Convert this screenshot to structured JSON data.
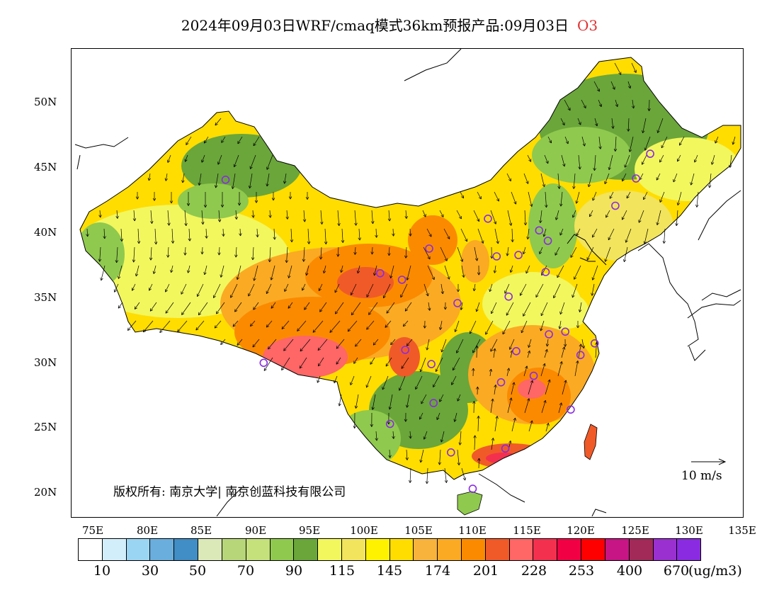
{
  "title": {
    "main": "2024年09月03日WRF/cmaq模式36km预报产品:09月03日",
    "species": "O3"
  },
  "lat_labels": [
    "50N",
    "45N",
    "40N",
    "35N",
    "30N",
    "25N",
    "20N"
  ],
  "lon_labels": [
    "75E",
    "80E",
    "85E",
    "90E",
    "95E",
    "100E",
    "105E",
    "110E",
    "115E",
    "120E",
    "125E",
    "130E",
    "135E"
  ],
  "colorbar": {
    "colors": [
      "#ffffff",
      "#d3eefb",
      "#9ad6f3",
      "#6aaede",
      "#418dc5",
      "#dbe9b9",
      "#b7d679",
      "#c4e17b",
      "#8fc94e",
      "#6aa63a",
      "#f2f75e",
      "#f2e45c",
      "#fff200",
      "#ffdd00",
      "#f8b33d",
      "#fbaa23",
      "#fb8a00",
      "#f05a28",
      "#ff6666",
      "#f4304f",
      "#f20044",
      "#ff0000",
      "#c71585",
      "#a22a58",
      "#9b30d0",
      "#8a2be2"
    ],
    "labels": [
      "10",
      "30",
      "50",
      "70",
      "90",
      "115",
      "145",
      "174",
      "201",
      "228",
      "253",
      "400",
      "670"
    ],
    "unit": "(ug/m3)"
  },
  "copyright": "版权所有: 南京大学| 南京创蓝科技有限公司",
  "wind_scale_label": "10  m/s",
  "site_markers": [
    {
      "lon": 87.6,
      "lat": 43.8
    },
    {
      "lon": 91.1,
      "lat": 29.7
    },
    {
      "lon": 101.8,
      "lat": 36.6
    },
    {
      "lon": 103.8,
      "lat": 36.1
    },
    {
      "lon": 106.3,
      "lat": 38.5
    },
    {
      "lon": 104.1,
      "lat": 30.7
    },
    {
      "lon": 102.7,
      "lat": 25.0
    },
    {
      "lon": 106.7,
      "lat": 26.6
    },
    {
      "lon": 106.5,
      "lat": 29.6
    },
    {
      "lon": 108.9,
      "lat": 34.3
    },
    {
      "lon": 111.7,
      "lat": 40.8
    },
    {
      "lon": 112.5,
      "lat": 37.9
    },
    {
      "lon": 113.6,
      "lat": 34.8
    },
    {
      "lon": 114.5,
      "lat": 38.0
    },
    {
      "lon": 116.4,
      "lat": 39.9
    },
    {
      "lon": 117.2,
      "lat": 39.1
    },
    {
      "lon": 117.0,
      "lat": 36.7
    },
    {
      "lon": 117.3,
      "lat": 31.9
    },
    {
      "lon": 118.8,
      "lat": 32.1
    },
    {
      "lon": 120.2,
      "lat": 30.3
    },
    {
      "lon": 121.5,
      "lat": 31.2
    },
    {
      "lon": 114.3,
      "lat": 30.6
    },
    {
      "lon": 112.9,
      "lat": 28.2
    },
    {
      "lon": 115.9,
      "lat": 28.7
    },
    {
      "lon": 119.3,
      "lat": 26.1
    },
    {
      "lon": 113.3,
      "lat": 23.1
    },
    {
      "lon": 108.3,
      "lat": 22.8
    },
    {
      "lon": 110.3,
      "lat": 20.0
    },
    {
      "lon": 123.4,
      "lat": 41.8
    },
    {
      "lon": 125.3,
      "lat": 43.9
    },
    {
      "lon": 126.6,
      "lat": 45.8
    }
  ]
}
